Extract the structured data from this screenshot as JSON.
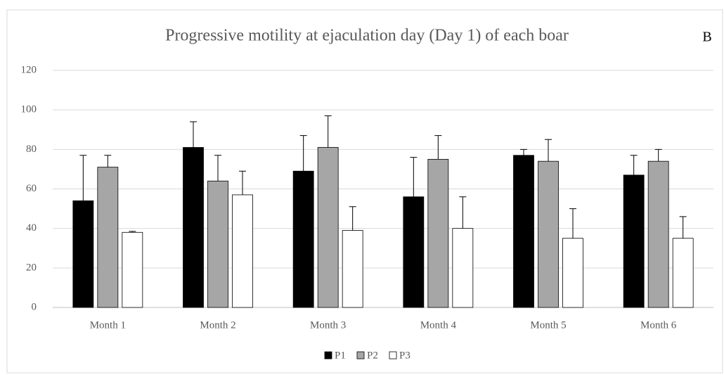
{
  "chart_data": {
    "type": "bar",
    "title": "Progressive motility  at ejaculation day (Day 1) of each boar",
    "annotation": "B",
    "categories": [
      "Month 1",
      "Month 2",
      "Month 3",
      "Month 4",
      "Month 5",
      "Month 6"
    ],
    "series": [
      {
        "name": "P1",
        "color": "#000000",
        "values": [
          54,
          81,
          69,
          56,
          77,
          67
        ],
        "errors": [
          23,
          13,
          18,
          20,
          3,
          10
        ]
      },
      {
        "name": "P2",
        "color": "#a6a6a6",
        "values": [
          71,
          64,
          81,
          75,
          74,
          74
        ],
        "errors": [
          6,
          13,
          16,
          12,
          11,
          6
        ]
      },
      {
        "name": "P3",
        "color": "#ffffff",
        "values": [
          38,
          57,
          39,
          40,
          35,
          35
        ],
        "errors": [
          0.5,
          12,
          12,
          16,
          15,
          11
        ]
      }
    ],
    "ylim": [
      0,
      120
    ],
    "yticks": [
      0,
      20,
      40,
      60,
      80,
      100,
      120
    ],
    "grid": true,
    "legend": "bottom"
  }
}
